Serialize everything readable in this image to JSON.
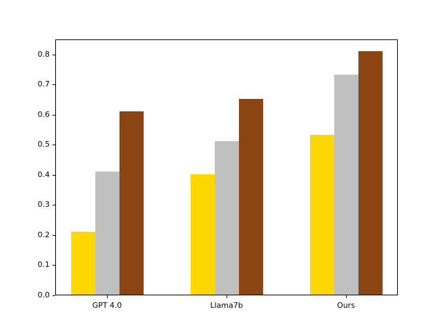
{
  "figure": {
    "background_color": "#FFFFFF",
    "axis_color": "#000000"
  },
  "chart_data": {
    "type": "bar",
    "title": "",
    "xlabel": "",
    "ylabel": "",
    "categories": [
      "GPT 4.0",
      "Llama7b",
      "Ours"
    ],
    "series": [
      {
        "name": "gold",
        "color": "#FFD700",
        "values": [
          0.21,
          0.4,
          0.53
        ]
      },
      {
        "name": "silver",
        "color": "#C0C0C0",
        "values": [
          0.41,
          0.51,
          0.73
        ]
      },
      {
        "name": "brown",
        "color": "#8B4513",
        "values": [
          0.61,
          0.65,
          0.81
        ]
      }
    ],
    "ylim": [
      0,
      0.8505
    ],
    "yticks": [
      0.0,
      0.1,
      0.2,
      0.3,
      0.4,
      0.5,
      0.6,
      0.7,
      0.8
    ],
    "ytick_labels": [
      "0.0",
      "0.1",
      "0.2",
      "0.3",
      "0.4",
      "0.5",
      "0.6",
      "0.7",
      "0.8"
    ],
    "grid": false,
    "legend": "none",
    "bar_width_units": 0.2
  }
}
